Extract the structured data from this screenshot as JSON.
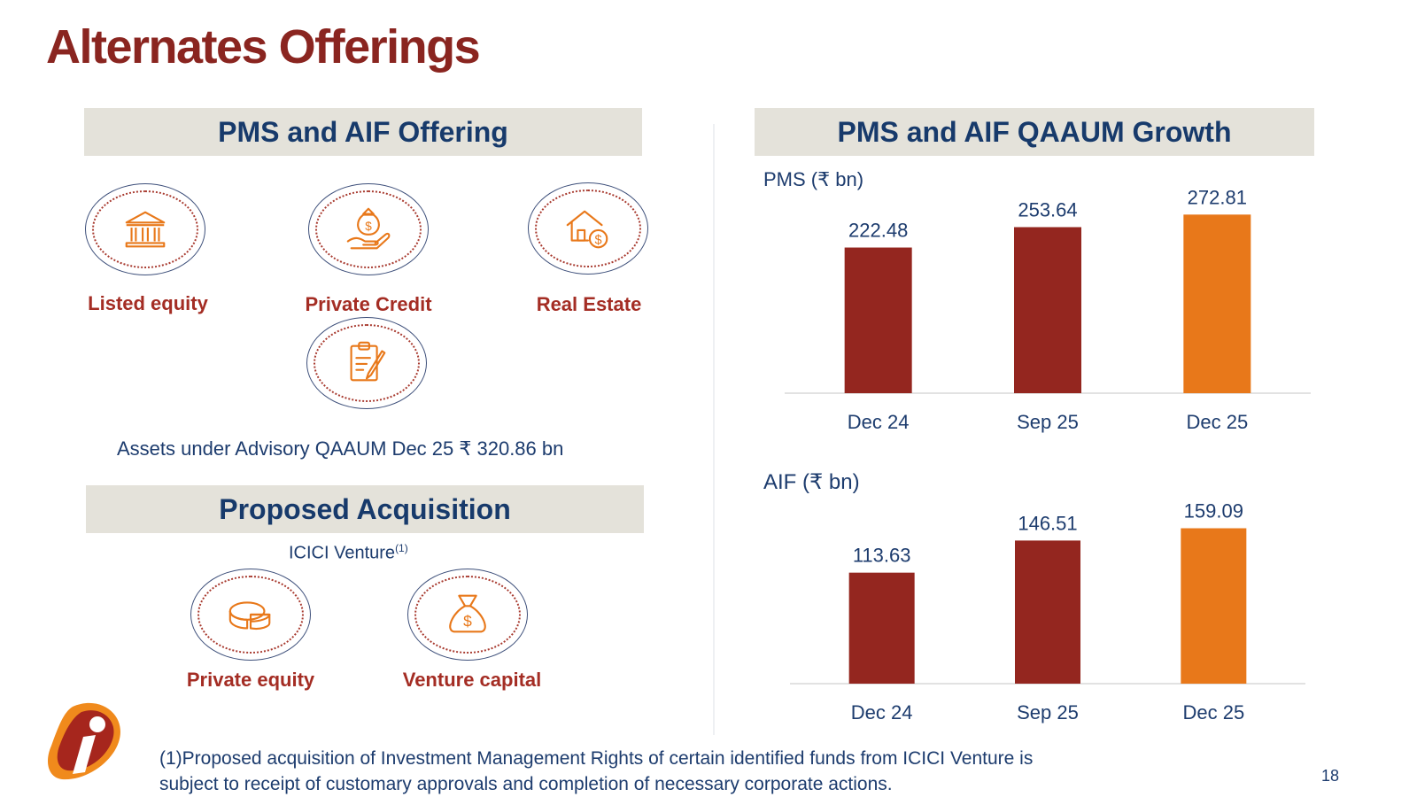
{
  "page": {
    "title": "Alternates Offerings",
    "page_number": "18",
    "footnote_line1": "(1)Proposed acquisition of Investment Management Rights of certain identified funds from ICICI Venture is",
    "footnote_line2": "subject to receipt of customary approvals and completion of necessary corporate actions."
  },
  "offering": {
    "header": "PMS and AIF Offering",
    "items": [
      {
        "label": "Listed equity",
        "icon": "bank-icon"
      },
      {
        "label": "Private Credit",
        "icon": "money-bag-hand-icon"
      },
      {
        "label": "Real Estate",
        "icon": "house-dollar-icon"
      },
      {
        "label": "",
        "icon": "clipboard-pen-icon"
      }
    ],
    "advisory_note": "Assets under Advisory QAAUM Dec 25 ₹ 320.86 bn"
  },
  "acquisition": {
    "header": "Proposed Acquisition",
    "subtitle": "ICICI Venture",
    "subtitle_sup": "(1)",
    "items": [
      {
        "label": "Private equity",
        "icon": "pie-chart-icon"
      },
      {
        "label": "Venture capital",
        "icon": "money-bag-icon"
      }
    ]
  },
  "growth": {
    "header": "PMS and AIF QAAUM Growth"
  },
  "colors": {
    "dark_red": "#94261f",
    "orange": "#e8781a",
    "navy": "#1d3c6e"
  },
  "chart_data": [
    {
      "type": "bar",
      "title": "PMS (₹ bn)",
      "categories": [
        "Dec 24",
        "Sep 25",
        "Dec 25"
      ],
      "values": [
        222.48,
        253.64,
        272.81
      ],
      "labels": [
        "222.48",
        "253.64",
        "272.81"
      ],
      "bar_colors": [
        "#94261f",
        "#94261f",
        "#e8781a"
      ],
      "ylim": [
        0,
        280
      ]
    },
    {
      "type": "bar",
      "title": "AIF (₹ bn)",
      "categories": [
        "Dec 24",
        "Sep 25",
        "Dec 25"
      ],
      "values": [
        113.63,
        146.51,
        159.09
      ],
      "labels": [
        "113.63",
        "146.51",
        "159.09"
      ],
      "bar_colors": [
        "#94261f",
        "#94261f",
        "#e8781a"
      ],
      "ylim": [
        0,
        165
      ]
    }
  ]
}
